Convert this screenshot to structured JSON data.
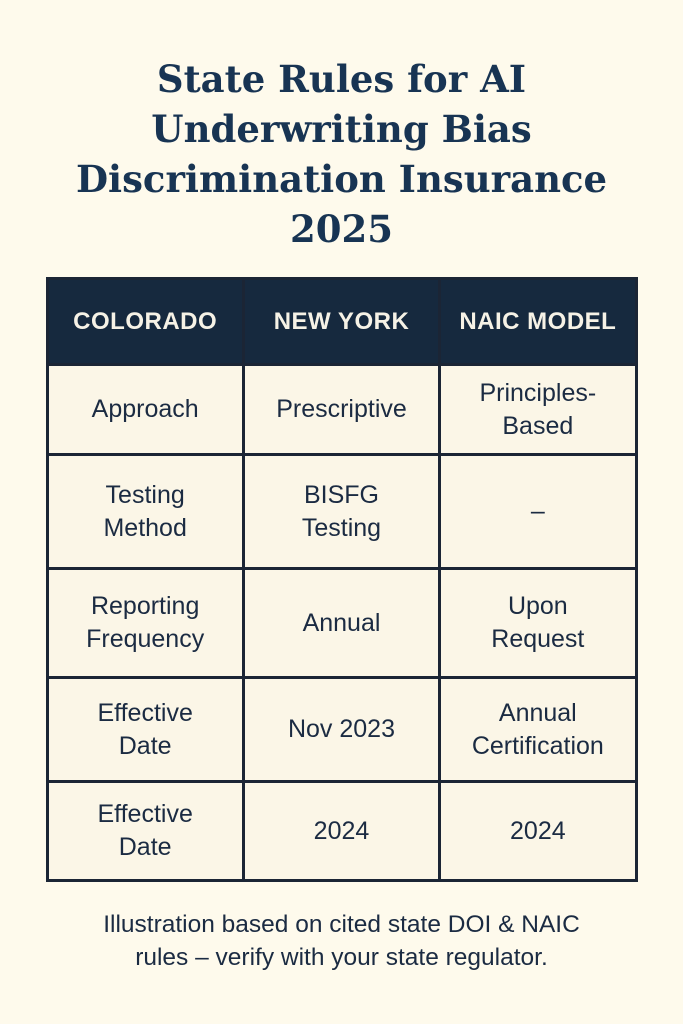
{
  "page": {
    "title": "State Rules for AI\nUnderwriting Bias\nDiscrimination Insurance\n2025",
    "footnote": "Illustration based on cited state DOI & NAIC\nrules – verify with your state regulator."
  },
  "colors": {
    "page_background": "#FEFAEC",
    "header_navy": "#16293E",
    "label_gold": "#D9A952",
    "cell_cream": "#FBF6E7",
    "border_navy": "#1B2535",
    "title_navy": "#183453",
    "body_text_navy": "#1B2B42",
    "header_text": "#F6F2E6"
  },
  "table": {
    "headers": [
      "COLORADO",
      "NEW YORK",
      "NAIC MODEL"
    ],
    "rows": [
      {
        "cells": [
          "Approach",
          "Prescriptive",
          "Principles-Based"
        ]
      },
      {
        "cells": [
          "Testing\nMethod",
          "BISFG\nTesting",
          "–"
        ]
      },
      {
        "cells": [
          "Reporting\nFrequency",
          "Annual",
          "Upon\nRequest"
        ]
      },
      {
        "cells": [
          "Effective\nDate",
          "Nov 2023",
          "Annual\nCertification"
        ]
      },
      {
        "cells": [
          "Effective\nDate",
          "2024",
          "2024"
        ]
      }
    ]
  },
  "chart_data": {
    "type": "table",
    "title": "State Rules for AI Underwriting Bias Discrimination Insurance 2025",
    "columns": [
      "COLORADO",
      "NEW YORK",
      "NAIC MODEL"
    ],
    "rows": [
      [
        "Approach",
        "Prescriptive",
        "Principles-Based"
      ],
      [
        "Testing Method",
        "BISFG Testing",
        "–"
      ],
      [
        "Reporting Frequency",
        "Annual",
        "Upon Request"
      ],
      [
        "Effective Date",
        "Nov 2023",
        "Annual Certification"
      ],
      [
        "Effective Date",
        "2024",
        "2024"
      ]
    ],
    "footnote": "Illustration based on cited state DOI & NAIC rules – verify with your state regulator.",
    "layout": {
      "header_background": "#16293E",
      "label_column_background": "#D9A952",
      "data_cell_background": "#FBF6E7",
      "grid": "on"
    }
  }
}
